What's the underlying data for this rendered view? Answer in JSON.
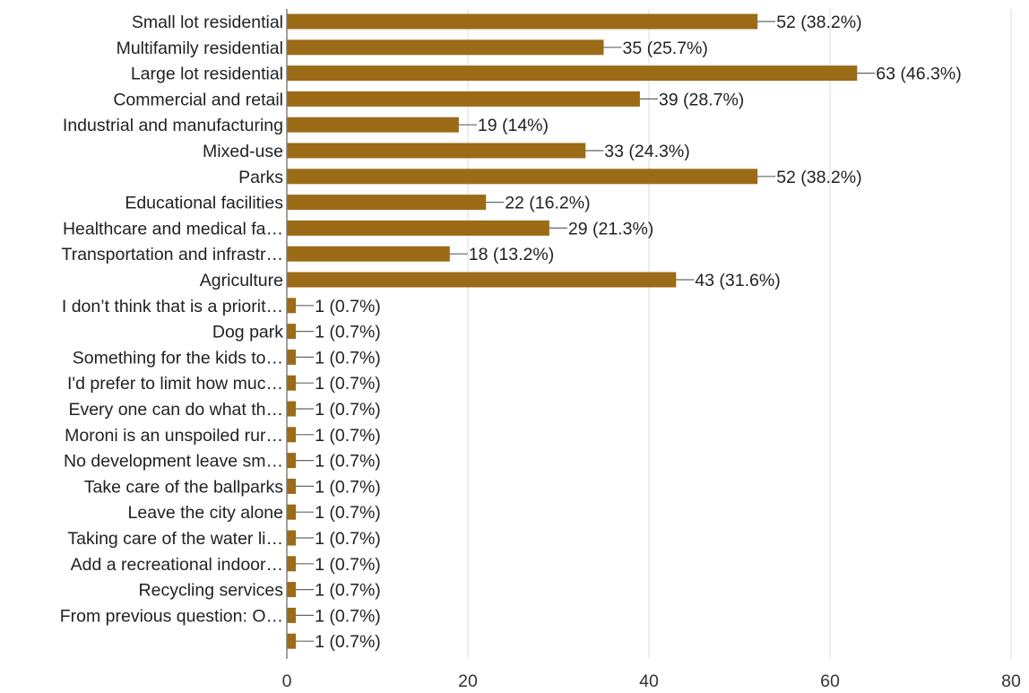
{
  "chart_data": {
    "type": "bar",
    "orientation": "horizontal",
    "title": "",
    "xlabel": "",
    "ylabel": "",
    "xlim": [
      0,
      80
    ],
    "x_ticks": [
      "0",
      "20",
      "40",
      "60",
      "80"
    ],
    "grid": true,
    "bar_color": "#9c6b17",
    "categories": [
      "Small lot residential",
      "Multifamily residential",
      "Large lot residential",
      "Commercial and retail",
      "Industrial and manufacturing",
      "Mixed-use",
      "Parks",
      "Educational facilities",
      "Healthcare and medical fa…",
      "Transportation and infrastr…",
      "Agriculture",
      "I don’t think that is a priorit…",
      "Dog park",
      "Something for the kids to…",
      "I'd prefer to limit how muc…",
      "Every one can do what th…",
      "Moroni is an unspoiled rur…",
      "No development leave sm…",
      "Take care of the ballparks",
      "Leave the city alone",
      "Taking care of the water li…",
      "Add a recreational indoor…",
      "Recycling services",
      "From previous question: O…",
      ""
    ],
    "values": [
      52,
      35,
      63,
      39,
      19,
      33,
      52,
      22,
      29,
      18,
      43,
      1,
      1,
      1,
      1,
      1,
      1,
      1,
      1,
      1,
      1,
      1,
      1,
      1,
      1
    ],
    "value_labels": [
      "52 (38.2%)",
      "35 (25.7%)",
      "63 (46.3%)",
      "39 (28.7%)",
      "19 (14%)",
      "33 (24.3%)",
      "52 (38.2%)",
      "22 (16.2%)",
      "29 (21.3%)",
      "18 (13.2%)",
      "43 (31.6%)",
      "1 (0.7%)",
      "1 (0.7%)",
      "1 (0.7%)",
      "1 (0.7%)",
      "1 (0.7%)",
      "1 (0.7%)",
      "1 (0.7%)",
      "1 (0.7%)",
      "1 (0.7%)",
      "1 (0.7%)",
      "1 (0.7%)",
      "1 (0.7%)",
      "1 (0.7%)",
      "1 (0.7%)"
    ]
  }
}
